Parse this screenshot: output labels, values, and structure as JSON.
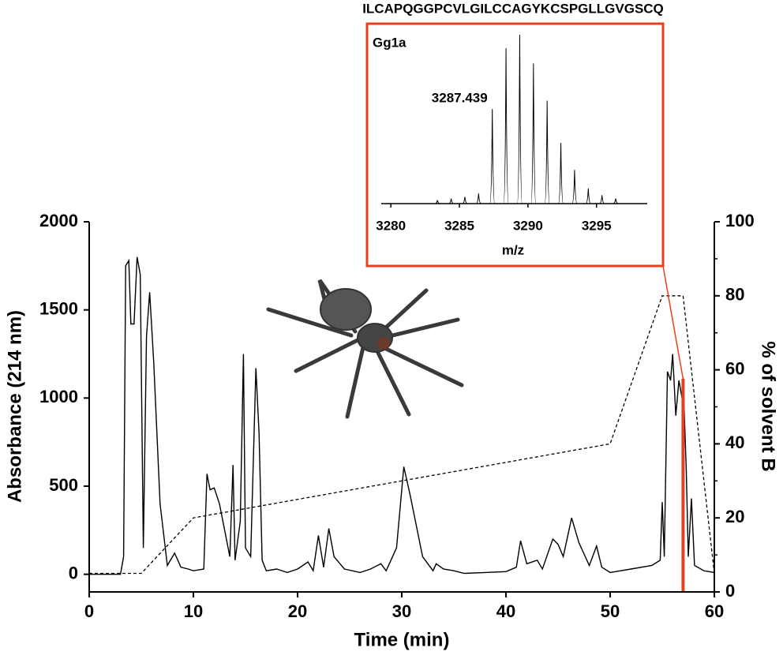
{
  "chart_data": [
    {
      "type": "line",
      "x_label": "Time (min)",
      "y_label": "Absorbance (214 nm)",
      "y2_label": "% of solvent B",
      "xlim": [
        0,
        60
      ],
      "xticks": [
        0,
        10,
        20,
        30,
        40,
        50,
        60
      ],
      "ylim": [
        -100,
        2000
      ],
      "yticks": [
        0,
        500,
        1000,
        1500,
        2000
      ],
      "y2lim": [
        0,
        100
      ],
      "y2ticks": [
        0,
        20,
        40,
        60,
        80,
        100
      ],
      "highlight_x": 57,
      "highlight_color": "#e8401c",
      "series": [
        {
          "color": "#000000",
          "x": [
            0,
            3,
            3.3,
            3.5,
            3.8,
            4.0,
            4.3,
            4.6,
            4.9,
            5.2,
            5.5,
            5.8,
            6.2,
            6.8,
            7.5,
            8.2,
            8.8,
            9.5,
            10,
            11,
            11.3,
            11.6,
            12,
            12.5,
            13,
            13.5,
            13.8,
            14,
            14.5,
            14.8,
            15,
            15.5,
            16,
            16.3,
            16.6,
            17,
            18,
            19,
            20,
            21,
            21.5,
            22,
            22.5,
            23,
            23.5,
            24.5,
            26,
            27,
            28,
            28.5,
            29.5,
            30.2,
            30.8,
            32,
            33,
            33.3,
            34,
            35,
            36,
            38,
            40,
            41,
            41.4,
            42,
            43,
            43.5,
            44.5,
            45,
            45.5,
            46.3,
            47,
            48,
            48.7,
            49.2,
            50,
            52,
            54,
            54.8,
            55,
            55.2,
            55.5,
            55.8,
            56,
            56.3,
            56.6,
            56.9,
            57,
            57.3,
            57.5,
            57.8,
            58.1,
            59,
            60
          ],
          "values": [
            0,
            0,
            100,
            1750,
            1780,
            1420,
            1420,
            1800,
            1700,
            150,
            1350,
            1600,
            1200,
            400,
            50,
            120,
            40,
            30,
            20,
            30,
            570,
            480,
            490,
            400,
            250,
            100,
            620,
            80,
            300,
            1250,
            150,
            100,
            1170,
            800,
            80,
            20,
            30,
            10,
            30,
            70,
            20,
            220,
            40,
            260,
            100,
            30,
            10,
            30,
            60,
            20,
            150,
            610,
            450,
            100,
            20,
            60,
            30,
            20,
            5,
            10,
            15,
            40,
            190,
            60,
            80,
            30,
            200,
            170,
            100,
            320,
            180,
            50,
            160,
            40,
            10,
            30,
            50,
            80,
            410,
            100,
            1150,
            1100,
            1250,
            900,
            1100,
            1000,
            1120,
            600,
            100,
            430,
            50,
            20,
            10
          ]
        },
        {
          "color": "#000000",
          "dashed": true,
          "axis": "y2",
          "x": [
            0,
            5,
            10,
            50,
            55,
            57,
            60
          ],
          "values": [
            5,
            5,
            20,
            40,
            80,
            80,
            5
          ]
        }
      ]
    },
    {
      "type": "stem",
      "title": "Gg1a",
      "subtitle": "ILCAPQGGPCVLGILCCAGYKCSPGLLGVGSCQ",
      "x_label": "m/z",
      "annotation": "3287.439",
      "xlim": [
        3279.3,
        3298.7
      ],
      "xticks": [
        3280,
        3285,
        3290,
        3295
      ],
      "ylim": [
        0,
        100
      ],
      "box_color": "#e8401c",
      "x": [
        3283.4,
        3284.4,
        3285.4,
        3286.4,
        3287.4,
        3288.4,
        3289.4,
        3290.4,
        3291.4,
        3292.4,
        3293.4,
        3294.4,
        3295.4,
        3296.4
      ],
      "values": [
        2,
        3,
        4,
        6,
        56,
        92,
        100,
        83,
        61,
        36,
        20,
        9,
        5,
        3
      ]
    }
  ]
}
